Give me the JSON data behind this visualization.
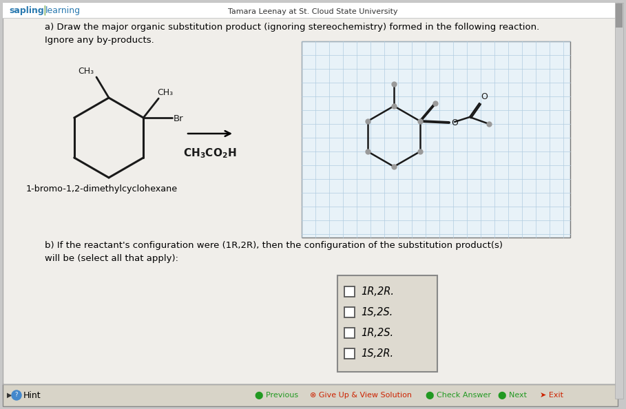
{
  "bg_color": "#c8c8c8",
  "page_bg": "#f0eeea",
  "white": "#ffffff",
  "black": "#000000",
  "bond_color": "#1a1a1a",
  "gray_node": "#9a9a9a",
  "grid_line_color": "#b0cce0",
  "grid_bg": "#e8f2f8",
  "header_sapling_color": "#2a7ab0",
  "header_tree_color": "#5a9a30",
  "toolbar_bg": "#d8d4c8",
  "checkbox_panel_bg": "#dedad0",
  "title_a": "a) Draw the major organic substitution product (ignoring stereochemistry) formed in the following reaction.\nIgnore any by-products.",
  "customized_text": "Tamara Leenay at St. Cloud State University",
  "compound_label": "1-bromo-1,2-dimethylcyclohexane",
  "part_b": "b) If the reactant's configuration were (1R,2R), then the configuration of the substitution product(s)\nwill be (select all that apply):",
  "checkbox_labels": [
    "1R,2R.",
    "1S,2S.",
    "1R,2S.",
    "1S,2R."
  ]
}
